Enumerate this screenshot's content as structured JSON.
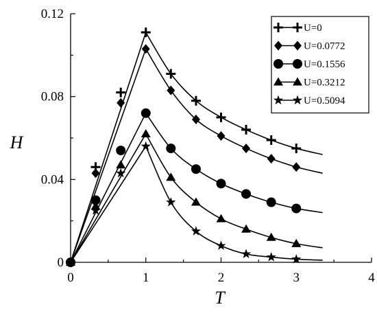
{
  "chart_data": {
    "type": "line",
    "title": "",
    "xlabel": "T",
    "ylabel": "H",
    "xlim": [
      0,
      4
    ],
    "ylim": [
      0,
      0.12
    ],
    "xticks": [
      0,
      1,
      2,
      3,
      4
    ],
    "xtick_labels": [
      "0",
      "1",
      "2",
      "3",
      "4"
    ],
    "yticks": [
      0,
      0.04,
      0.08,
      0.12
    ],
    "ytick_labels": [
      "0",
      "0.04",
      "0.08",
      "0.12"
    ],
    "grid": false,
    "legend_position": "top-right",
    "series": [
      {
        "name": "U=0",
        "marker": "plus",
        "x": [
          0,
          0.333,
          0.667,
          1.0,
          1.333,
          1.667,
          2.0,
          2.333,
          2.667,
          3.0
        ],
        "y": [
          0,
          0.046,
          0.082,
          0.111,
          0.091,
          0.078,
          0.07,
          0.064,
          0.059,
          0.055
        ]
      },
      {
        "name": "U=0.0772",
        "marker": "diamond",
        "x": [
          0,
          0.333,
          0.667,
          1.0,
          1.333,
          1.667,
          2.0,
          2.333,
          2.667,
          3.0
        ],
        "y": [
          0,
          0.043,
          0.077,
          0.103,
          0.083,
          0.069,
          0.061,
          0.055,
          0.05,
          0.046
        ]
      },
      {
        "name": "U=0.1556",
        "marker": "circle",
        "x": [
          0,
          0.333,
          0.667,
          1.0,
          1.333,
          1.667,
          2.0,
          2.333,
          2.667,
          3.0
        ],
        "y": [
          0,
          0.03,
          0.054,
          0.072,
          0.055,
          0.045,
          0.038,
          0.033,
          0.029,
          0.026
        ]
      },
      {
        "name": "U=0.3212",
        "marker": "triangle",
        "x": [
          0,
          0.333,
          0.667,
          1.0,
          1.333,
          1.667,
          2.0,
          2.333,
          2.667,
          3.0
        ],
        "y": [
          0,
          0.027,
          0.047,
          0.062,
          0.041,
          0.029,
          0.021,
          0.016,
          0.012,
          0.009
        ]
      },
      {
        "name": "U=0.5094",
        "marker": "star",
        "x": [
          0,
          0.333,
          0.667,
          1.0,
          1.333,
          1.667,
          2.0,
          2.333,
          2.667,
          3.0
        ],
        "y": [
          0,
          0.025,
          0.043,
          0.056,
          0.029,
          0.015,
          0.008,
          0.004,
          0.0025,
          0.0015
        ]
      }
    ],
    "fit_curves": [
      {
        "series": "U=0",
        "x": [
          0,
          1.0,
          1.333,
          1.667,
          2.0,
          2.333,
          2.667,
          3.0,
          3.35
        ],
        "y": [
          0,
          0.111,
          0.091,
          0.078,
          0.07,
          0.064,
          0.059,
          0.055,
          0.052
        ]
      },
      {
        "series": "U=0.0772",
        "x": [
          0,
          1.0,
          1.333,
          1.667,
          2.0,
          2.333,
          2.667,
          3.0,
          3.35
        ],
        "y": [
          0,
          0.103,
          0.083,
          0.069,
          0.061,
          0.055,
          0.05,
          0.046,
          0.043
        ]
      },
      {
        "series": "U=0.1556",
        "x": [
          0,
          1.0,
          1.333,
          1.667,
          2.0,
          2.333,
          2.667,
          3.0,
          3.35
        ],
        "y": [
          0,
          0.072,
          0.055,
          0.045,
          0.038,
          0.033,
          0.029,
          0.026,
          0.024
        ]
      },
      {
        "series": "U=0.3212",
        "x": [
          0,
          1.0,
          1.333,
          1.667,
          2.0,
          2.333,
          2.667,
          3.0,
          3.35
        ],
        "y": [
          0,
          0.062,
          0.041,
          0.029,
          0.021,
          0.016,
          0.012,
          0.009,
          0.007
        ]
      },
      {
        "series": "U=0.5094",
        "x": [
          0,
          1.0,
          1.333,
          1.667,
          2.0,
          2.333,
          2.667,
          3.0,
          3.35
        ],
        "y": [
          0,
          0.056,
          0.029,
          0.015,
          0.008,
          0.004,
          0.0025,
          0.0015,
          0.001
        ]
      }
    ]
  }
}
